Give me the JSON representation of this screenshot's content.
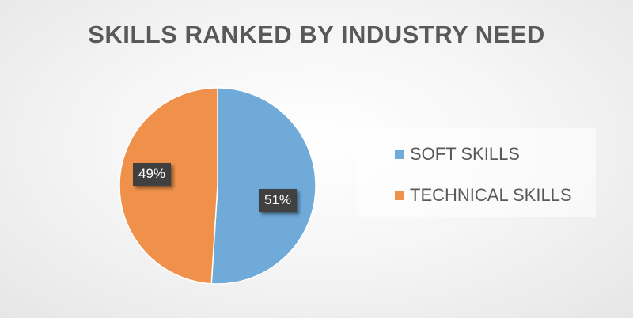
{
  "chart_data": {
    "type": "pie",
    "title": "SKILLS RANKED BY INDUSTRY NEED",
    "slices": [
      {
        "name": "SOFT SKILLS",
        "value": 51,
        "label": "51%",
        "color": "#6FAAD9"
      },
      {
        "name": "TECHNICAL SKILLS",
        "value": 49,
        "label": "49%",
        "color": "#EF914B"
      }
    ],
    "legend_position": "right"
  }
}
